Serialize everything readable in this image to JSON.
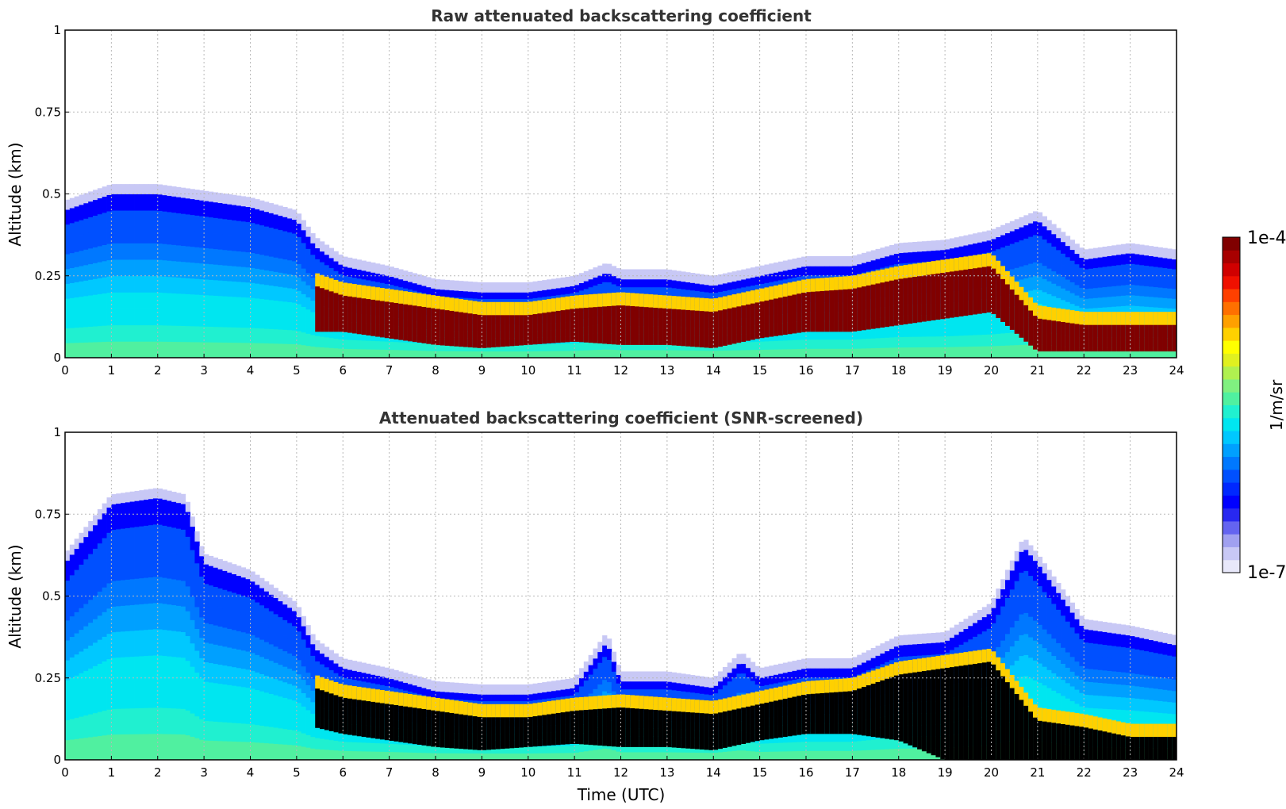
{
  "chart_data": [
    {
      "type": "heatmap",
      "title": "Raw attenuated backscattering coefficient",
      "xlabel": "",
      "ylabel": "Altitude (km)",
      "xlim": [
        0,
        24
      ],
      "ylim": [
        0,
        1
      ],
      "xticks": [
        "0",
        "1",
        "2",
        "3",
        "4",
        "5",
        "6",
        "7",
        "8",
        "9",
        "10",
        "11",
        "12",
        "13",
        "14",
        "15",
        "16",
        "17",
        "18",
        "19",
        "20",
        "21",
        "22",
        "23",
        "24"
      ],
      "yticks": [
        "0",
        "0.25",
        "0.5",
        "0.75",
        "1"
      ],
      "ytick_values": [
        0,
        0.25,
        0.5,
        0.75,
        1
      ],
      "grid": true,
      "screened": false,
      "layer_top_km": [
        [
          0,
          0.45
        ],
        [
          1,
          0.5
        ],
        [
          2,
          0.5
        ],
        [
          3,
          0.48
        ],
        [
          4,
          0.46
        ],
        [
          5,
          0.42
        ],
        [
          5.4,
          0.34
        ],
        [
          6,
          0.28
        ],
        [
          7,
          0.25
        ],
        [
          8,
          0.21
        ],
        [
          9,
          0.2
        ],
        [
          10,
          0.2
        ],
        [
          11,
          0.22
        ],
        [
          11.7,
          0.26
        ],
        [
          12,
          0.24
        ],
        [
          13,
          0.24
        ],
        [
          14,
          0.22
        ],
        [
          15,
          0.25
        ],
        [
          16,
          0.28
        ],
        [
          17,
          0.28
        ],
        [
          18,
          0.32
        ],
        [
          19,
          0.33
        ],
        [
          20,
          0.36
        ],
        [
          21,
          0.42
        ],
        [
          22,
          0.3
        ],
        [
          23,
          0.32
        ],
        [
          24,
          0.3
        ]
      ],
      "core_band_km": [
        [
          5.4,
          0.08,
          0.22
        ],
        [
          6,
          0.08,
          0.19
        ],
        [
          7,
          0.06,
          0.17
        ],
        [
          8,
          0.04,
          0.15
        ],
        [
          9,
          0.03,
          0.13
        ],
        [
          10,
          0.04,
          0.13
        ],
        [
          11,
          0.05,
          0.15
        ],
        [
          12,
          0.04,
          0.16
        ],
        [
          13,
          0.04,
          0.15
        ],
        [
          14,
          0.03,
          0.14
        ],
        [
          15,
          0.06,
          0.17
        ],
        [
          16,
          0.08,
          0.2
        ],
        [
          17,
          0.08,
          0.21
        ],
        [
          18,
          0.1,
          0.24
        ],
        [
          19,
          0.12,
          0.26
        ],
        [
          20,
          0.14,
          0.28
        ],
        [
          21,
          0.02,
          0.12
        ],
        [
          22,
          0.02,
          0.1
        ],
        [
          23,
          0.02,
          0.1
        ],
        [
          24,
          0.02,
          0.1
        ]
      ]
    },
    {
      "type": "heatmap",
      "title": "Attenuated backscattering coefficient (SNR-screened)",
      "xlabel": "Time (UTC)",
      "ylabel": "Altitude (km)",
      "xlim": [
        0,
        24
      ],
      "ylim": [
        0,
        1
      ],
      "xticks": [
        "0",
        "1",
        "2",
        "3",
        "4",
        "5",
        "6",
        "7",
        "8",
        "9",
        "10",
        "11",
        "12",
        "13",
        "14",
        "15",
        "16",
        "17",
        "18",
        "19",
        "20",
        "21",
        "22",
        "23",
        "24"
      ],
      "yticks": [
        "0",
        "0.25",
        "0.5",
        "0.75",
        "1"
      ],
      "ytick_values": [
        0,
        0.25,
        0.5,
        0.75,
        1
      ],
      "grid": true,
      "screened": true,
      "layer_top_km": [
        [
          0,
          0.6
        ],
        [
          1,
          0.78
        ],
        [
          2,
          0.8
        ],
        [
          2.6,
          0.78
        ],
        [
          3,
          0.6
        ],
        [
          4,
          0.55
        ],
        [
          5,
          0.45
        ],
        [
          5.4,
          0.34
        ],
        [
          6,
          0.28
        ],
        [
          7,
          0.25
        ],
        [
          8,
          0.21
        ],
        [
          9,
          0.2
        ],
        [
          10,
          0.2
        ],
        [
          11,
          0.22
        ],
        [
          11.7,
          0.36
        ],
        [
          12,
          0.24
        ],
        [
          13,
          0.24
        ],
        [
          14,
          0.22
        ],
        [
          14.6,
          0.3
        ],
        [
          15,
          0.25
        ],
        [
          16,
          0.28
        ],
        [
          17,
          0.28
        ],
        [
          18,
          0.35
        ],
        [
          19,
          0.36
        ],
        [
          20,
          0.45
        ],
        [
          20.7,
          0.65
        ],
        [
          21,
          0.6
        ],
        [
          22,
          0.4
        ],
        [
          23,
          0.38
        ],
        [
          24,
          0.35
        ]
      ],
      "core_band_km": [
        [
          5.4,
          0.1,
          0.22
        ],
        [
          6,
          0.08,
          0.19
        ],
        [
          7,
          0.06,
          0.17
        ],
        [
          8,
          0.04,
          0.15
        ],
        [
          9,
          0.03,
          0.13
        ],
        [
          10,
          0.04,
          0.13
        ],
        [
          11,
          0.05,
          0.15
        ],
        [
          12,
          0.04,
          0.16
        ],
        [
          13,
          0.04,
          0.15
        ],
        [
          14,
          0.03,
          0.14
        ],
        [
          15,
          0.06,
          0.17
        ],
        [
          16,
          0.08,
          0.2
        ],
        [
          17,
          0.08,
          0.21
        ],
        [
          18,
          0.06,
          0.26
        ],
        [
          19,
          0.0,
          0.28
        ],
        [
          20,
          0.0,
          0.3
        ],
        [
          21,
          0.0,
          0.12
        ],
        [
          22,
          0.0,
          0.1
        ],
        [
          23,
          0.0,
          0.07
        ],
        [
          24,
          0.0,
          0.07
        ]
      ]
    }
  ],
  "colorbar": {
    "label": "1/m/sr",
    "max_label": "1e-4",
    "min_label": "1e-7",
    "colors": [
      "#e8e8fa",
      "#c8c8f5",
      "#a0a0f0",
      "#6464f0",
      "#2828f0",
      "#0000ff",
      "#0028ff",
      "#0050ff",
      "#0078ff",
      "#00a0ff",
      "#00c8ff",
      "#00e6f0",
      "#20f0d0",
      "#50f0a0",
      "#80f080",
      "#b0f050",
      "#e0f020",
      "#ffff00",
      "#ffd000",
      "#ffa000",
      "#ff7000",
      "#ff4000",
      "#f01000",
      "#d00000",
      "#a80000",
      "#800000"
    ]
  }
}
